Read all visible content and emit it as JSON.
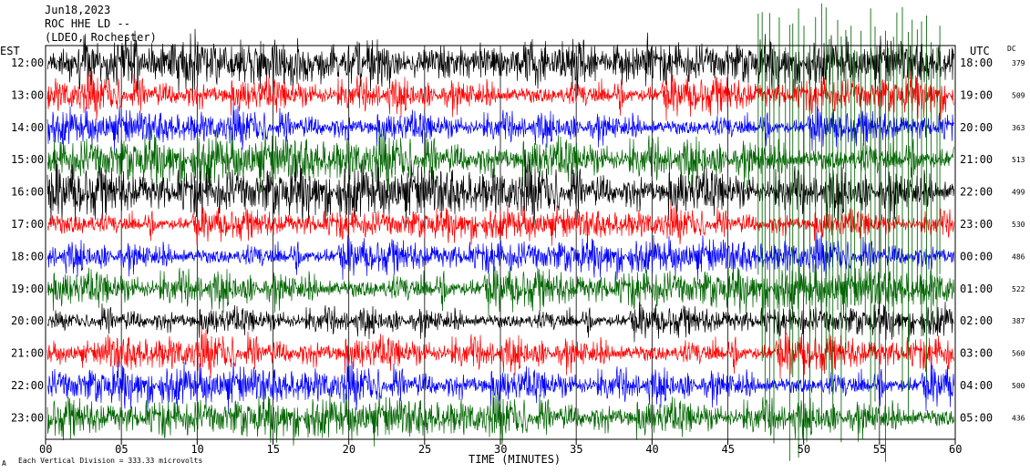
{
  "header": {
    "date": "Jun18,2023",
    "station": "ROC HHE LD --",
    "location": "(LDEO, Rochester)"
  },
  "footer": {
    "corner_mark": "A",
    "scale_note": "Each Vertical Division =  333.33 microvolts"
  },
  "chart_data": {
    "type": "line",
    "title": "",
    "xlabel": "TIME (MINUTES)",
    "left_axis_label": "EST",
    "right_axis_label": "UTC",
    "dc_label": "DC",
    "xlim": [
      0,
      60
    ],
    "x_tick_labels": [
      "00",
      "05",
      "10",
      "15",
      "20",
      "25",
      "30",
      "35",
      "40",
      "45",
      "50",
      "55",
      "60"
    ],
    "grid": "vertical lines every 5 minutes",
    "trace_colors": [
      "#000000",
      "#ff0000",
      "#0000ff",
      "#006400"
    ],
    "rows": [
      {
        "est": "12:00",
        "utc": "18:00",
        "dc": "379",
        "color": "#000000",
        "amplitude": 1.3
      },
      {
        "est": "13:00",
        "utc": "19:00",
        "dc": "509",
        "color": "#ff0000",
        "amplitude": 1.1
      },
      {
        "est": "14:00",
        "utc": "20:00",
        "dc": "363",
        "color": "#0000ff",
        "amplitude": 1.0
      },
      {
        "est": "15:00",
        "utc": "21:00",
        "dc": "513",
        "color": "#006400",
        "amplitude": 1.4
      },
      {
        "est": "16:00",
        "utc": "22:00",
        "dc": "499",
        "color": "#000000",
        "amplitude": 1.5
      },
      {
        "est": "17:00",
        "utc": "23:00",
        "dc": "530",
        "color": "#ff0000",
        "amplitude": 0.9
      },
      {
        "est": "18:00",
        "utc": "00:00",
        "dc": "486",
        "color": "#0000ff",
        "amplitude": 1.0
      },
      {
        "est": "19:00",
        "utc": "01:00",
        "dc": "522",
        "color": "#006400",
        "amplitude": 1.2
      },
      {
        "est": "20:00",
        "utc": "02:00",
        "dc": "387",
        "color": "#000000",
        "amplitude": 0.9
      },
      {
        "est": "21:00",
        "utc": "03:00",
        "dc": "560",
        "color": "#ff0000",
        "amplitude": 1.1
      },
      {
        "est": "22:00",
        "utc": "04:00",
        "dc": "500",
        "color": "#0000ff",
        "amplitude": 1.1
      },
      {
        "est": "23:00",
        "utc": "05:00",
        "dc": "436",
        "color": "#006400",
        "amplitude": 1.2
      }
    ],
    "event": {
      "start_minute": 47,
      "end_minute": 59,
      "color": "#006400",
      "description_visible": false
    }
  }
}
